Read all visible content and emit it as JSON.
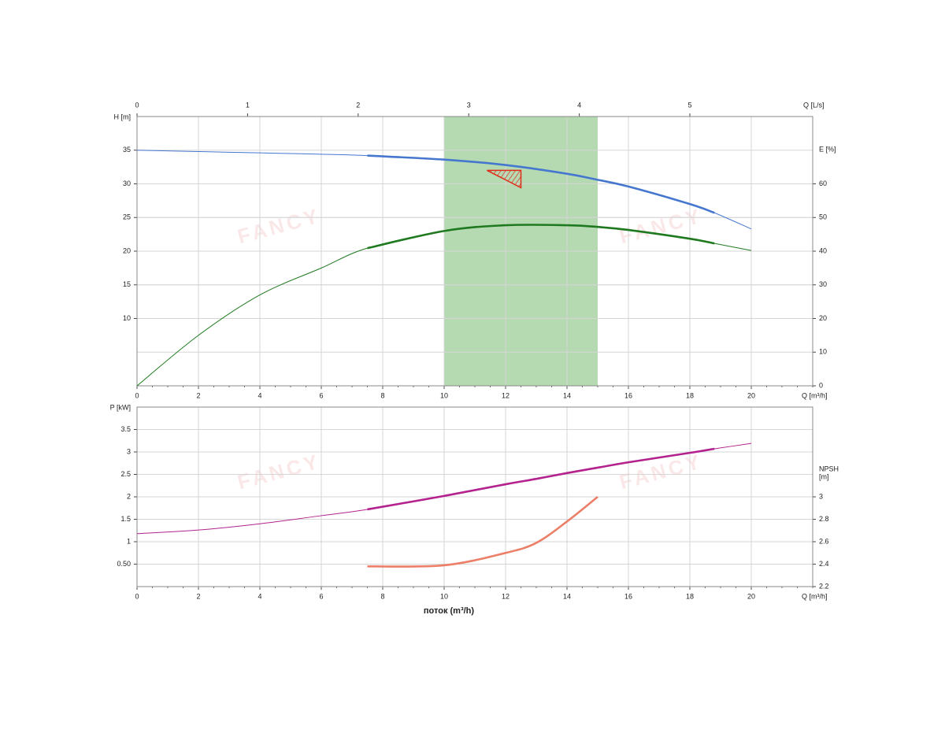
{
  "chart_data": [
    {
      "type": "line",
      "watermark": "FANCY",
      "x_label": "Q [m³/h]",
      "x2_label": "Q [L/s]",
      "y_label": "H [m]",
      "y2_label": "E [%]",
      "x": [
        0,
        2,
        4,
        6,
        7.5,
        10,
        12,
        14,
        15,
        16,
        18,
        18.8,
        20
      ],
      "xlim": [
        0,
        22
      ],
      "xticks": [
        0,
        2,
        4,
        6,
        8,
        10,
        12,
        14,
        16,
        18,
        20
      ],
      "x2lim": [
        0,
        6.111
      ],
      "x2ticks": [
        0,
        1,
        2,
        3,
        4,
        5
      ],
      "ylim": [
        0,
        40
      ],
      "yticks": [
        10,
        15,
        20,
        25,
        30,
        35
      ],
      "y2lim": [
        0,
        80
      ],
      "y2ticks": [
        0,
        10,
        20,
        30,
        40,
        50,
        60
      ],
      "grid": true,
      "preferred_range": [
        10,
        15
      ],
      "preferred_color": "#a8d4a4",
      "operating_range": [
        7.5,
        18.8
      ],
      "duty_point": {
        "x": 12.5,
        "y": 32
      },
      "duty_color": "#e02a1a",
      "series": [
        {
          "color": "#4677cf",
          "values": [
            35,
            34.8,
            34.6,
            34.4,
            34.2,
            33.6,
            32.8,
            31.5,
            30.6,
            29.6,
            27,
            25.7,
            23.3
          ]
        },
        {
          "color": "#1f7a1f",
          "axis": "y2",
          "values": [
            0,
            15,
            27,
            35,
            40.9,
            46,
            47.7,
            47.7,
            47.2,
            46.3,
            43.7,
            42.3,
            40.2
          ]
        }
      ]
    },
    {
      "type": "line",
      "watermark": "FANCY",
      "x_label": "Q [m³/h]",
      "title": "поток (m³/h)",
      "y_label": "P [kW]",
      "y2_label": [
        "NPSH",
        "[m]"
      ],
      "x": [
        0,
        2,
        4,
        6,
        7.5,
        10,
        12,
        13,
        14,
        15,
        16,
        18,
        18.8,
        20
      ],
      "xlim": [
        0,
        22
      ],
      "xticks": [
        0,
        2,
        4,
        6,
        8,
        10,
        12,
        14,
        16,
        18,
        20
      ],
      "ylim": [
        0,
        4
      ],
      "yticks": [
        {
          "value": 0.5,
          "label": "0.50"
        },
        1,
        1.5,
        2,
        2.5,
        3,
        3.5
      ],
      "y2lim": [
        2.2,
        3.8
      ],
      "y2ticks": [
        2.2,
        2.4,
        2.6,
        2.8,
        3
      ],
      "grid": true,
      "operating_range": [
        7.5,
        18.8
      ],
      "series": [
        {
          "color": "#b3228d",
          "values": [
            1.18,
            1.26,
            1.4,
            1.58,
            1.72,
            2.02,
            2.28,
            2.4,
            2.53,
            2.65,
            2.77,
            2.98,
            3.07,
            3.19
          ]
        },
        {
          "color": "#ec7f68",
          "axis": "y2",
          "thick": true,
          "values": [
            null,
            null,
            null,
            null,
            2.38,
            2.39,
            2.5,
            2.59,
            2.78,
            3.0,
            null,
            null,
            null,
            null
          ]
        }
      ]
    }
  ]
}
